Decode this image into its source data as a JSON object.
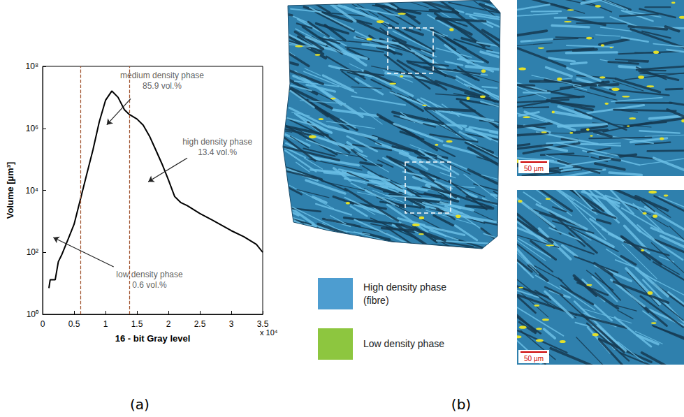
{
  "chart_data": {
    "type": "line",
    "x": [
      0.1,
      0.12,
      0.2,
      0.25,
      0.3,
      0.4,
      0.5,
      0.6,
      0.7,
      0.8,
      0.9,
      1.0,
      1.1,
      1.2,
      1.3,
      1.38,
      1.5,
      1.6,
      1.7,
      1.8,
      1.9,
      2.0,
      2.1,
      2.2,
      2.3,
      2.5,
      2.7,
      3.0,
      3.2,
      3.4,
      3.5
    ],
    "values": [
      7,
      13,
      13,
      50,
      80,
      250,
      800,
      5000,
      32000,
      200000,
      1600000,
      8000000,
      16000000,
      10000000,
      4000000,
      2800000,
      2000000,
      1260000,
      560000,
      200000,
      70000,
      22000,
      6300,
      4000,
      3200,
      1800,
      1100,
      500,
      320,
      180,
      100
    ],
    "color": "#000000",
    "xlabel": "16 - bit Gray level",
    "ylabel": "Volume [µm³]",
    "x_multiplier": "x 10⁴",
    "xlim": [
      0,
      3.5
    ],
    "ylim": [
      1,
      100000000
    ],
    "xticks": [
      0,
      0.5,
      1,
      1.5,
      2,
      2.5,
      3,
      3.5
    ],
    "yticks": [
      {
        "value": 1,
        "label": "10⁰"
      },
      {
        "value": 100,
        "label": "10²"
      },
      {
        "value": 10000,
        "label": "10⁴"
      },
      {
        "value": 1000000,
        "label": "10⁶"
      },
      {
        "value": 100000000,
        "label": "10⁸"
      }
    ],
    "log": "y",
    "grid": false,
    "thresholds": [
      0.6,
      1.38
    ],
    "threshold_color": "#a0522d",
    "annotations": [
      {
        "lines": [
          "medium density phase",
          "85.9 vol.%"
        ],
        "text_at": [
          1.9,
          35000000
        ],
        "arrow_from": [
          1.4,
          9000000
        ],
        "arrow_to": [
          1.02,
          1300000
        ]
      },
      {
        "lines": [
          "high density phase",
          "13.4 vol.%"
        ],
        "text_at": [
          2.78,
          250000
        ],
        "arrow_from": [
          2.3,
          110000
        ],
        "arrow_to": [
          1.68,
          19000
        ]
      },
      {
        "lines": [
          "low density phase",
          "0.6 vol.%"
        ],
        "text_at": [
          1.7,
          13
        ],
        "arrow_from": [
          1.13,
          34
        ],
        "arrow_to": [
          0.17,
          300
        ]
      }
    ]
  },
  "panel_labels": [
    "(a)",
    "(b)"
  ],
  "image_panel": {
    "legend": [
      {
        "lines": [
          "High density phase",
          "(fibre)"
        ],
        "color": "#4d9dd0"
      },
      {
        "lines": [
          "Low density phase"
        ],
        "color": "#8dc63f"
      }
    ],
    "scale_bars": [
      "50 µm",
      "50 µm"
    ]
  }
}
